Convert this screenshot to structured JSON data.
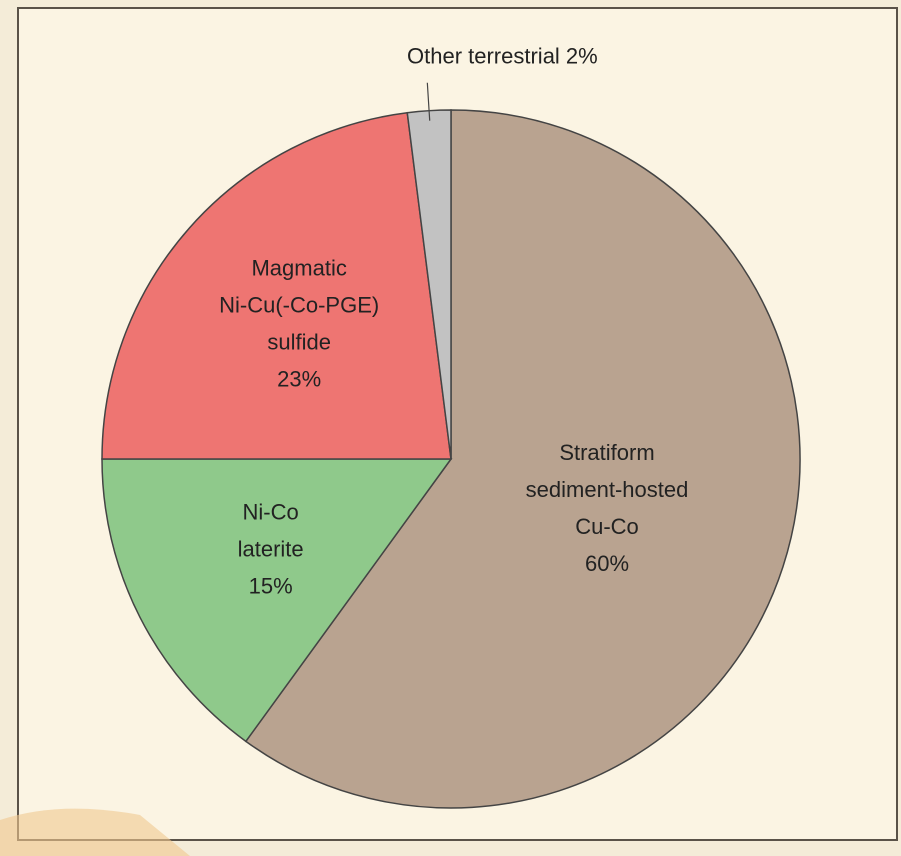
{
  "chart_data": {
    "type": "pie",
    "categories": [
      [
        "Stratiform",
        "sediment-hosted",
        "Cu-Co"
      ],
      [
        "Ni-Co",
        "laterite"
      ],
      [
        "Magmatic",
        "Ni-Cu(-Co-PGE)",
        "sulfide"
      ],
      [
        "Other terrestrial"
      ]
    ],
    "values": [
      60,
      15,
      23,
      2
    ],
    "value_labels": [
      "60%",
      "15%",
      "23%",
      "2%"
    ],
    "colors": [
      "#b9a390",
      "#8fc98b",
      "#ee7572",
      "#c2c2c2"
    ]
  }
}
